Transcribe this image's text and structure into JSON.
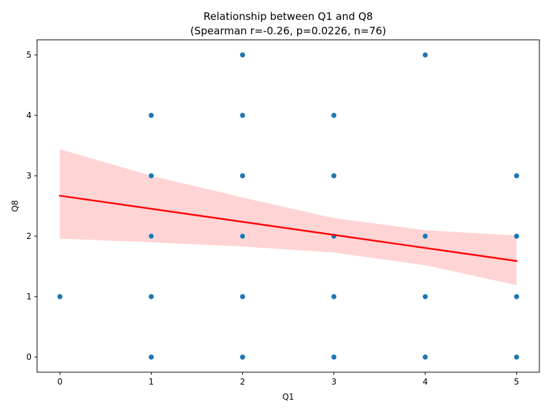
{
  "chart_data": {
    "type": "scatter",
    "title": "Relationship between Q1 and Q8",
    "subtitle": "(Spearman r=-0.26, p=0.0226, n=76)",
    "xlabel": "Q1",
    "ylabel": "Q8",
    "xlim": [
      -0.25,
      5.25
    ],
    "ylim": [
      -0.25,
      5.25
    ],
    "xticks": [
      0,
      1,
      2,
      3,
      4,
      5
    ],
    "yticks": [
      0,
      1,
      2,
      3,
      4,
      5
    ],
    "grid": false,
    "point_color": "#1f77b4",
    "points": [
      {
        "x": 0,
        "y": 1
      },
      {
        "x": 1,
        "y": 0
      },
      {
        "x": 1,
        "y": 1
      },
      {
        "x": 1,
        "y": 2
      },
      {
        "x": 1,
        "y": 3
      },
      {
        "x": 1,
        "y": 4
      },
      {
        "x": 2,
        "y": 0
      },
      {
        "x": 2,
        "y": 1
      },
      {
        "x": 2,
        "y": 2
      },
      {
        "x": 2,
        "y": 3
      },
      {
        "x": 2,
        "y": 4
      },
      {
        "x": 2,
        "y": 5
      },
      {
        "x": 3,
        "y": 0
      },
      {
        "x": 3,
        "y": 1
      },
      {
        "x": 3,
        "y": 2
      },
      {
        "x": 3,
        "y": 3
      },
      {
        "x": 3,
        "y": 4
      },
      {
        "x": 4,
        "y": 0
      },
      {
        "x": 4,
        "y": 1
      },
      {
        "x": 4,
        "y": 2
      },
      {
        "x": 4,
        "y": 5
      },
      {
        "x": 5,
        "y": 0
      },
      {
        "x": 5,
        "y": 1
      },
      {
        "x": 5,
        "y": 2
      },
      {
        "x": 5,
        "y": 3
      }
    ],
    "regression_line": {
      "color": "#ff0000",
      "x": [
        0,
        5
      ],
      "y": [
        2.67,
        1.59
      ]
    },
    "confidence_band": {
      "color": "#ffcccc",
      "x": [
        0,
        1,
        2,
        3,
        4,
        5
      ],
      "lower": [
        1.96,
        1.9,
        1.83,
        1.73,
        1.52,
        1.19
      ],
      "upper": [
        3.44,
        3.0,
        2.64,
        2.3,
        2.1,
        2.01
      ]
    }
  }
}
